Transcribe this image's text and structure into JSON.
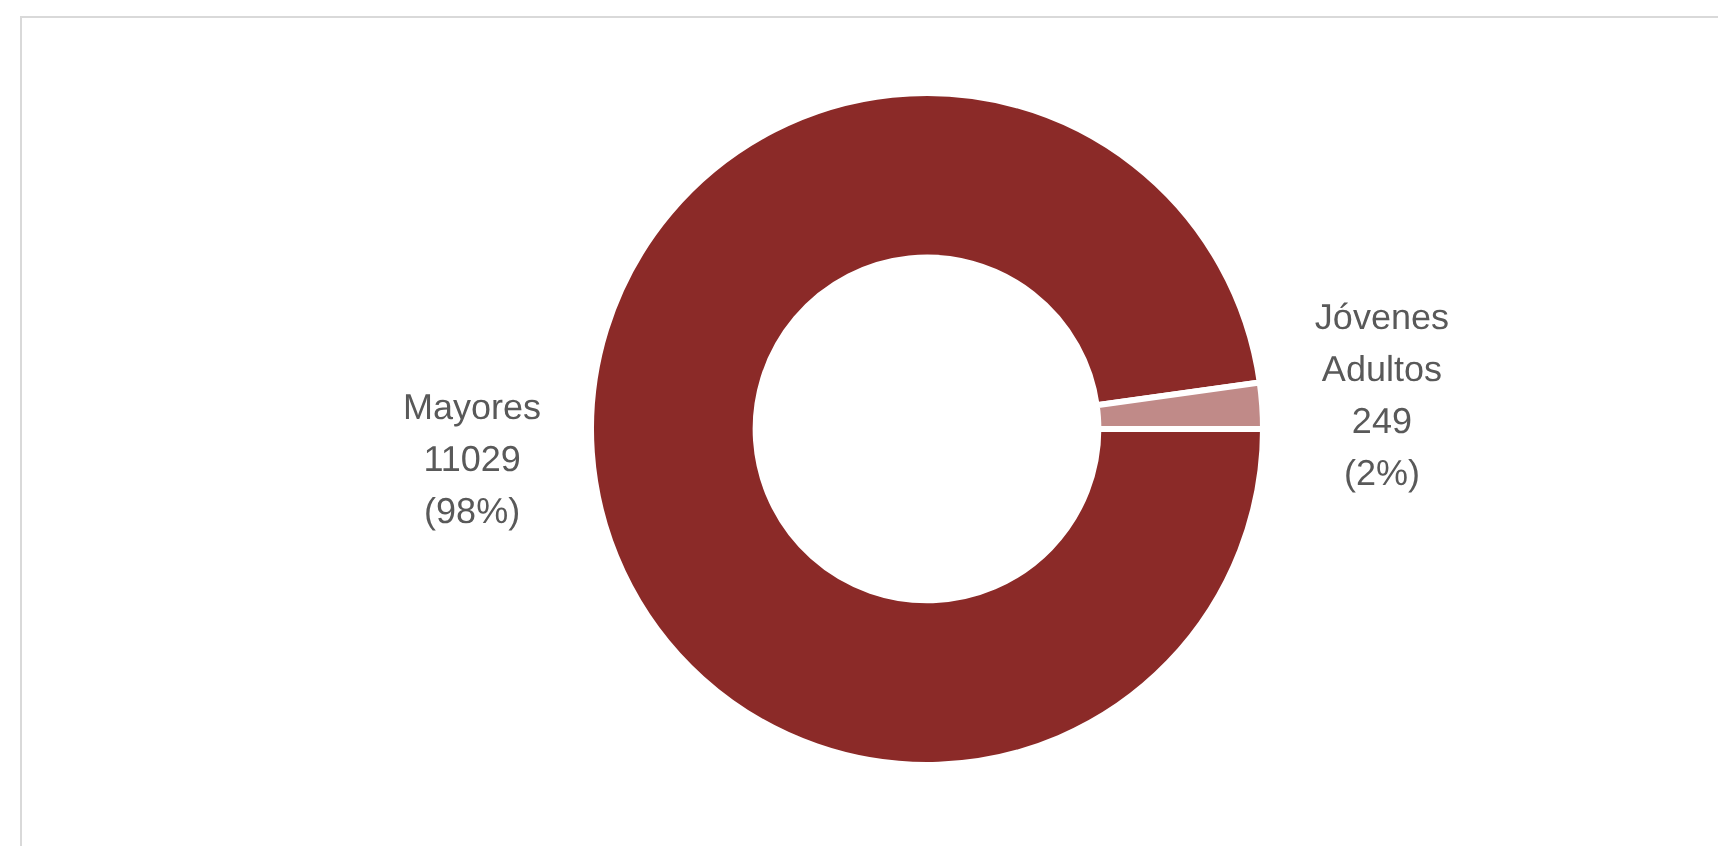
{
  "chart_data": {
    "type": "donut",
    "categories": [
      "Mayores",
      "Jóvenes Adultos"
    ],
    "values": [
      11029,
      249
    ],
    "colors": [
      "#8b2a28",
      "#c08a88"
    ],
    "value_labels": [
      "11029 (98%)",
      "249 (2%)"
    ],
    "legend": false
  }
}
